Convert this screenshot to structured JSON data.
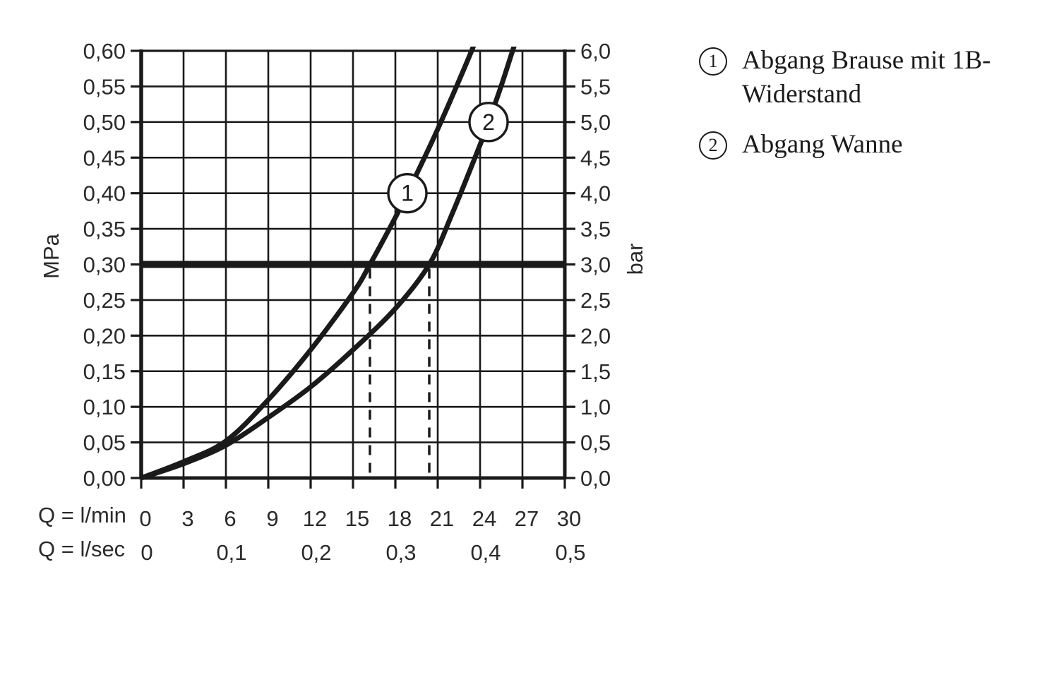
{
  "colors": {
    "ink": "#1a1a1a",
    "background": "#ffffff"
  },
  "legend": {
    "items": [
      {
        "marker": "1",
        "label": "Abgang Brause mit 1B-Widerstand"
      },
      {
        "marker": "2",
        "label": "Abgang Wanne"
      }
    ]
  },
  "chart_data": {
    "type": "line",
    "title": "",
    "grid": true,
    "x_axis": {
      "label_primary": "Q = l/min",
      "label_secondary": "Q = l/sec",
      "ticks_lmin": [
        "0",
        "3",
        "6",
        "9",
        "12",
        "15",
        "18",
        "21",
        "24",
        "27",
        "30"
      ],
      "ticks_lsec": [
        "0",
        "0,1",
        "0,2",
        "0,3",
        "0,4",
        "0,5"
      ],
      "range_lmin": [
        0,
        30
      ]
    },
    "y_axis_left": {
      "label": "MPa",
      "ticks": [
        "0,60",
        "0,55",
        "0,50",
        "0,45",
        "0,40",
        "0,35",
        "0,30",
        "0,25",
        "0,20",
        "0,15",
        "0,10",
        "0,05",
        "0,00"
      ],
      "range_mpa": [
        0,
        0.6
      ]
    },
    "y_axis_right": {
      "label": "bar",
      "ticks": [
        "6,0",
        "5,5",
        "5,0",
        "4,5",
        "4,0",
        "3,5",
        "3,0",
        "2,5",
        "2,0",
        "1,5",
        "1,0",
        "0,5",
        "0,0"
      ],
      "range_bar": [
        0,
        6
      ]
    },
    "reference_line": {
      "mpa": 0.3,
      "bar": 3.0
    },
    "guide_lines_lmin": [
      16.2,
      20.4
    ],
    "series": [
      {
        "id": "1",
        "label": "Abgang Brause mit 1B-Widerstand",
        "marker": {
          "lmin": 18.85,
          "mpa": 0.4
        },
        "points_lmin_mpa": [
          [
            0,
            0
          ],
          [
            3,
            0.023
          ],
          [
            6,
            0.052
          ],
          [
            9,
            0.11
          ],
          [
            12,
            0.18
          ],
          [
            15,
            0.26
          ],
          [
            16.2,
            0.3
          ],
          [
            18,
            0.366
          ],
          [
            18.85,
            0.4
          ],
          [
            21,
            0.49
          ],
          [
            23.4,
            0.6
          ],
          [
            23.8,
            0.625
          ]
        ]
      },
      {
        "id": "2",
        "label": "Abgang Wanne",
        "marker": {
          "lmin": 24.6,
          "mpa": 0.5
        },
        "points_lmin_mpa": [
          [
            0,
            0
          ],
          [
            3,
            0.02
          ],
          [
            6,
            0.046
          ],
          [
            9,
            0.085
          ],
          [
            12,
            0.128
          ],
          [
            15,
            0.18
          ],
          [
            18,
            0.238
          ],
          [
            20.4,
            0.3
          ],
          [
            22,
            0.37
          ],
          [
            24,
            0.468
          ],
          [
            24.6,
            0.5
          ],
          [
            25.5,
            0.551
          ],
          [
            26.3,
            0.6
          ],
          [
            26.8,
            0.63
          ]
        ]
      }
    ]
  }
}
